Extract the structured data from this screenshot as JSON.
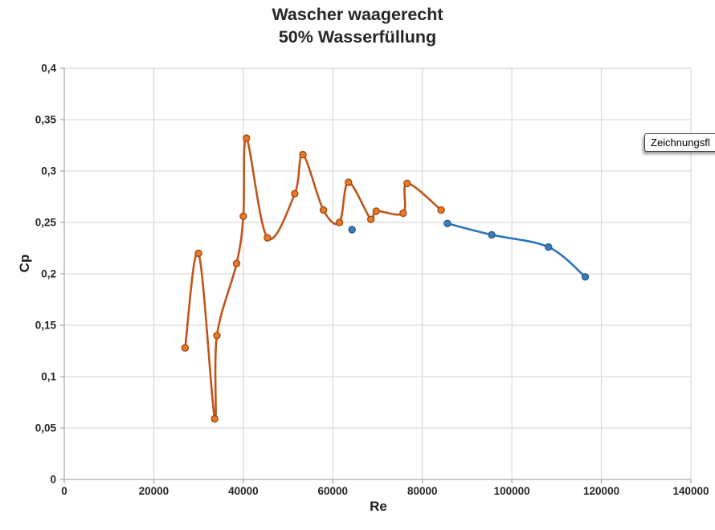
{
  "tooltip": {
    "label": "Zeichnungsfl"
  },
  "chart_data": {
    "type": "scatter",
    "title": "Wascher waagerecht",
    "subtitle": "50% Wasserfüllung",
    "xlabel": "Re",
    "ylabel": "Cp",
    "xlim": [
      0,
      140000
    ],
    "ylim": [
      0,
      0.4
    ],
    "grid": true,
    "legend": "none",
    "x_ticks": [
      {
        "value": 0,
        "label": "0"
      },
      {
        "value": 20000,
        "label": "20000"
      },
      {
        "value": 40000,
        "label": "40000"
      },
      {
        "value": 60000,
        "label": "60000"
      },
      {
        "value": 80000,
        "label": "80000"
      },
      {
        "value": 100000,
        "label": "100000"
      },
      {
        "value": 120000,
        "label": "120000"
      },
      {
        "value": 140000,
        "label": "140000"
      }
    ],
    "y_ticks": [
      {
        "value": 0,
        "label": "0"
      },
      {
        "value": 0.05,
        "label": "0,05"
      },
      {
        "value": 0.1,
        "label": "0,1"
      },
      {
        "value": 0.15,
        "label": "0,15"
      },
      {
        "value": 0.2,
        "label": "0,2"
      },
      {
        "value": 0.25,
        "label": "0,25"
      },
      {
        "value": 0.3,
        "label": "0,3"
      },
      {
        "value": 0.35,
        "label": "0,35"
      },
      {
        "value": 0.4,
        "label": "0,4"
      }
    ],
    "series": [
      {
        "name": "orange-series",
        "style": "smooth-line-with-markers",
        "line_color": "#C0551A",
        "marker_fill": "#E87A28",
        "marker_stroke": "#A64A10",
        "points": [
          [
            27000,
            0.128
          ],
          [
            30000,
            0.22
          ],
          [
            33600,
            0.059
          ],
          [
            34100,
            0.14
          ],
          [
            38500,
            0.21
          ],
          [
            40000,
            0.256
          ],
          [
            40700,
            0.332
          ],
          [
            45400,
            0.235
          ],
          [
            51500,
            0.278
          ],
          [
            53300,
            0.316
          ],
          [
            57900,
            0.262
          ],
          [
            61500,
            0.25
          ],
          [
            63500,
            0.289
          ],
          [
            68500,
            0.253
          ],
          [
            69700,
            0.261
          ],
          [
            75700,
            0.259
          ],
          [
            76600,
            0.288
          ],
          [
            84200,
            0.262
          ]
        ]
      },
      {
        "name": "blue-single-point",
        "style": "marker-only",
        "line_color": "#2E75B6",
        "marker_fill": "#3C7DBE",
        "marker_stroke": "#265D8F",
        "points": [
          [
            64300,
            0.243
          ]
        ]
      },
      {
        "name": "blue-series",
        "style": "smooth-line-with-markers",
        "line_color": "#2E75B6",
        "marker_fill": "#3C7DBE",
        "marker_stroke": "#265D8F",
        "points": [
          [
            85600,
            0.249
          ],
          [
            95500,
            0.238
          ],
          [
            108200,
            0.226
          ],
          [
            116400,
            0.197
          ]
        ]
      }
    ]
  }
}
